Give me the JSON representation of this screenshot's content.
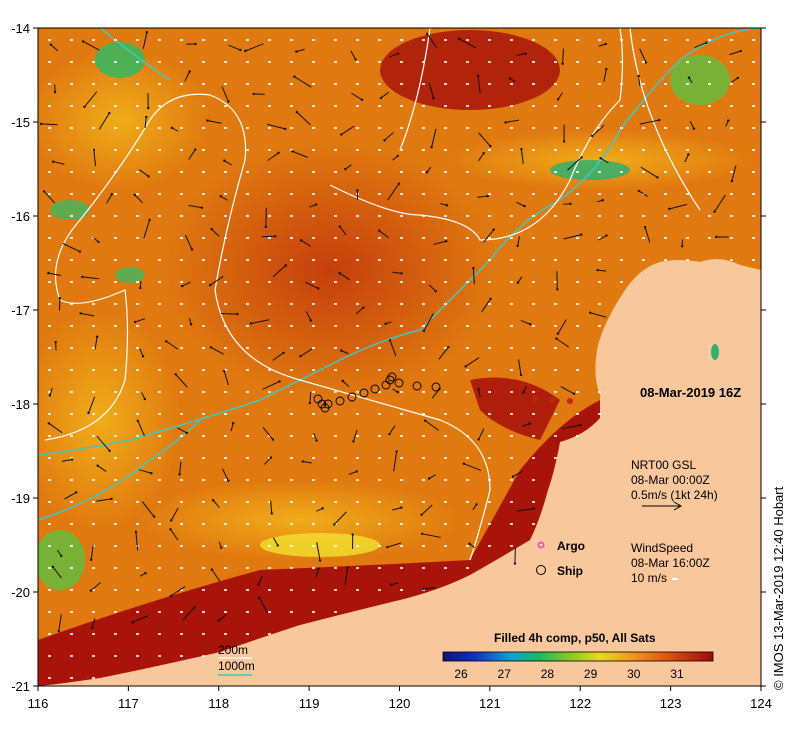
{
  "map": {
    "lon_ticks": [
      "116",
      "117",
      "118",
      "119",
      "120",
      "121",
      "122",
      "123",
      "124"
    ],
    "lat_ticks": [
      "-14",
      "-15",
      "-16",
      "-17",
      "-18",
      "-19",
      "-20",
      "-21"
    ],
    "timestamp": "08-Mar-2019 16Z",
    "current": {
      "line1": "NRT00 GSL",
      "line2": "08-Mar 00:00Z",
      "line3": "0.5m/s (1kt 24h)"
    },
    "legend": {
      "argo": "Argo",
      "ship": "Ship"
    },
    "wind": {
      "line1": "WindSpeed",
      "line2": "08-Mar 16:00Z",
      "line3": "10 m/s"
    },
    "depth": {
      "shallow": "200m",
      "deep": "1000m"
    },
    "colorbar": {
      "title": "Filled 4h comp, p50, All Sats",
      "labels": [
        "26",
        "27",
        "28",
        "29",
        "30",
        "31"
      ]
    },
    "credit": "© IMOS 13-Mar-2019 12:40 Hobart",
    "colors": {
      "land": "#f8c79b",
      "sst_mid": "#e07a10",
      "sst_hot": "#a8140a",
      "contour_1000": "#40c8c0",
      "contour_200": "#ffffff"
    }
  }
}
